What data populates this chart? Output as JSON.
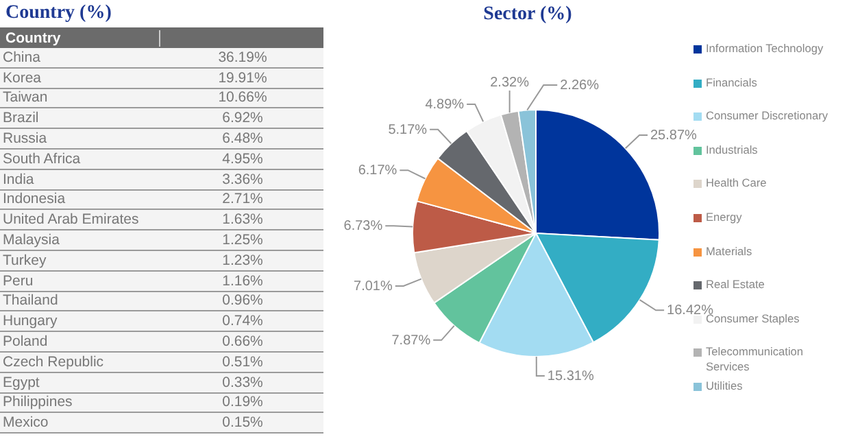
{
  "chart_data": [
    {
      "type": "other",
      "title": "Country (%)",
      "xlabel": "Country",
      "categories": [
        "China",
        "Korea",
        "Taiwan",
        "Brazil",
        "Russia",
        "South Africa",
        "India",
        "Indonesia",
        "United Arab Emirates",
        "Malaysia",
        "Turkey",
        "Peru",
        "Thailand",
        "Hungary",
        "Poland",
        "Czech Republic",
        "Egypt",
        "Philippines",
        "Mexico"
      ],
      "values": [
        36.19,
        19.91,
        10.66,
        6.92,
        6.48,
        4.95,
        3.36,
        2.71,
        1.63,
        1.25,
        1.23,
        1.16,
        0.96,
        0.74,
        0.66,
        0.51,
        0.33,
        0.19,
        0.15
      ],
      "value_labels": [
        "36.19%",
        "19.91%",
        "10.66%",
        "6.92%",
        "6.48%",
        "4.95%",
        "3.36%",
        "2.71%",
        "1.63%",
        "1.25%",
        "1.23%",
        "1.16%",
        "0.96%",
        "0.74%",
        "0.66%",
        "0.51%",
        "0.33%",
        "0.19%",
        "0.15%"
      ]
    },
    {
      "type": "pie",
      "title": "Sector (%)",
      "legend": "right",
      "categories": [
        "Information Technology",
        "Financials",
        "Consumer Discretionary",
        "Industrials",
        "Health Care",
        "Energy",
        "Materials",
        "Real Estate",
        "Consumer Staples",
        "Telecommunication Services",
        "Utilities"
      ],
      "values": [
        25.87,
        16.42,
        15.31,
        7.87,
        7.01,
        6.73,
        6.17,
        5.17,
        4.89,
        2.32,
        2.26
      ],
      "value_labels": [
        "25.87%",
        "16.42%",
        "15.31%",
        "7.87%",
        "7.01%",
        "6.73%",
        "6.17%",
        "5.17%",
        "4.89%",
        "2.32%",
        "2.26%"
      ],
      "colors": [
        "#00359c",
        "#33adc4",
        "#a3dcf2",
        "#62c39d",
        "#ddd5cb",
        "#bd5b47",
        "#f69441",
        "#65686d",
        "#f2f2f2",
        "#b3b3b3",
        "#8ac3d9"
      ]
    }
  ]
}
